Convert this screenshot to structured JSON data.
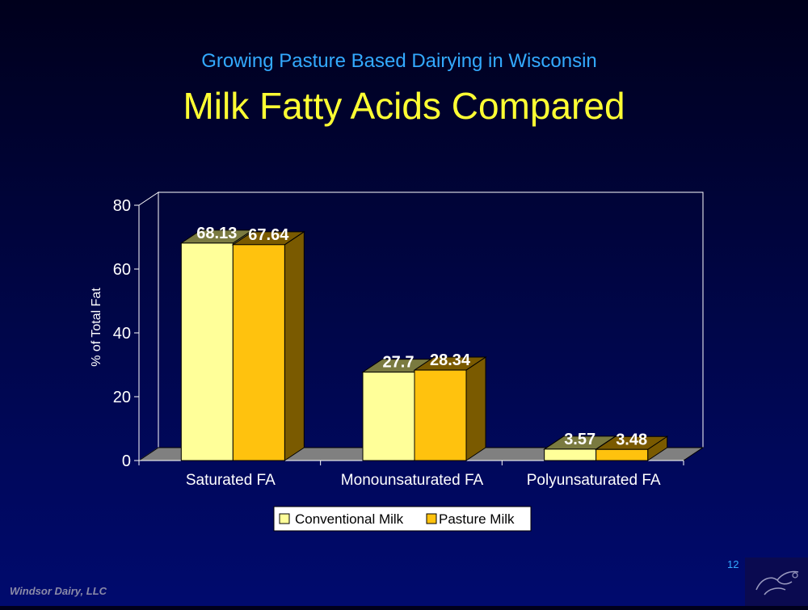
{
  "header": {
    "subtitle": "Growing Pasture Based Dairying in Wisconsin",
    "title": "Milk Fatty Acids Compared"
  },
  "chart_data": {
    "type": "bar",
    "categories": [
      "Saturated FA",
      "Monounsaturated FA",
      "Polyunsaturated FA"
    ],
    "series": [
      {
        "name": "Conventional Milk",
        "values": [
          68.13,
          27.7,
          3.57
        ],
        "labels": [
          "68.13",
          "27.7",
          "3.57"
        ],
        "color": "#ffff99",
        "side_color": "#7a7a40"
      },
      {
        "name": "Pasture Milk",
        "values": [
          67.64,
          28.34,
          3.48
        ],
        "labels": [
          "67.64",
          "28.34",
          "3.48"
        ],
        "color": "#ffc20e",
        "side_color": "#7a5a00"
      }
    ],
    "ylabel": "% of Total Fat",
    "ylim": [
      0,
      80
    ],
    "yticks": [
      "0",
      "20",
      "40",
      "60",
      "80"
    ],
    "three_d": true,
    "grid": false,
    "legend_position": "bottom"
  },
  "footer": {
    "company": "Windsor Dairy, LLC",
    "page_number": "12"
  }
}
